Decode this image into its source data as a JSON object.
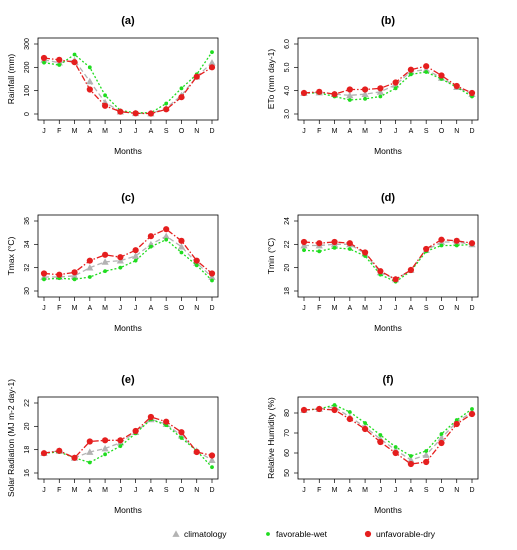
{
  "months": [
    "J",
    "F",
    "M",
    "A",
    "M",
    "J",
    "J",
    "A",
    "S",
    "O",
    "N",
    "D"
  ],
  "colors": {
    "climatology": "#b3b3b3",
    "favorable_wet": "#1fdc1f",
    "unfavorable_dry": "#e51e1e"
  },
  "legend": [
    {
      "key": "climatology",
      "label": "climatology",
      "marker": "triangle"
    },
    {
      "key": "favorable_wet",
      "label": "favorable-wet",
      "marker": "dot"
    },
    {
      "key": "unfavorable_dry",
      "label": "unfavorable-dry",
      "marker": "circle"
    }
  ],
  "chart_data": [
    {
      "type": "line",
      "title": "(a)",
      "xlabel": "Months",
      "ylabel": "Rainfall (mm)",
      "ylim": [
        0,
        300
      ],
      "yticks": [
        0,
        100,
        200,
        300
      ],
      "ytick_labels": [
        "0",
        "100",
        "200",
        "300"
      ],
      "categories": [
        "J",
        "F",
        "M",
        "A",
        "M",
        "J",
        "J",
        "A",
        "S",
        "O",
        "N",
        "D"
      ],
      "series": [
        {
          "name": "climatology",
          "values": [
            232,
            220,
            230,
            140,
            50,
            10,
            3,
            2,
            25,
            80,
            160,
            220
          ]
        },
        {
          "name": "favorable-wet",
          "values": [
            220,
            210,
            255,
            200,
            80,
            15,
            5,
            5,
            45,
            110,
            170,
            265
          ]
        },
        {
          "name": "unfavorable-dry",
          "values": [
            240,
            232,
            222,
            105,
            35,
            10,
            3,
            2,
            20,
            72,
            160,
            200
          ]
        }
      ]
    },
    {
      "type": "line",
      "title": "(b)",
      "xlabel": "Months",
      "ylabel": "ETo (mm day-1)",
      "ylim": [
        3.0,
        6.0
      ],
      "yticks": [
        3.0,
        4.0,
        5.0,
        6.0
      ],
      "ytick_labels": [
        "3.0",
        "4.0",
        "5.0",
        "6.0"
      ],
      "categories": [
        "J",
        "F",
        "M",
        "A",
        "M",
        "J",
        "J",
        "A",
        "S",
        "O",
        "N",
        "D"
      ],
      "series": [
        {
          "name": "climatology",
          "values": [
            3.9,
            3.92,
            3.85,
            3.8,
            3.85,
            3.95,
            4.25,
            4.82,
            4.9,
            4.55,
            4.15,
            3.85
          ]
        },
        {
          "name": "favorable-wet",
          "values": [
            3.9,
            3.9,
            3.75,
            3.6,
            3.65,
            3.75,
            4.1,
            4.7,
            4.8,
            4.5,
            4.15,
            3.75
          ]
        },
        {
          "name": "unfavorable-dry",
          "values": [
            3.9,
            3.95,
            3.85,
            4.05,
            4.05,
            4.1,
            4.35,
            4.9,
            5.05,
            4.65,
            4.2,
            3.9
          ]
        }
      ]
    },
    {
      "type": "line",
      "title": "(c)",
      "xlabel": "Months",
      "ylabel": "Tmax (°C)",
      "ylim": [
        30,
        36
      ],
      "yticks": [
        30,
        32,
        34,
        36
      ],
      "ytick_labels": [
        "30",
        "32",
        "34",
        "36"
      ],
      "categories": [
        "J",
        "F",
        "M",
        "A",
        "M",
        "J",
        "J",
        "A",
        "S",
        "O",
        "N",
        "D"
      ],
      "series": [
        {
          "name": "climatology",
          "values": [
            31.2,
            31.2,
            31.3,
            32.0,
            32.5,
            32.6,
            33.0,
            34.0,
            34.7,
            33.8,
            32.4,
            31.2
          ]
        },
        {
          "name": "favorable-wet",
          "values": [
            31.0,
            31.1,
            31.0,
            31.2,
            31.7,
            32.0,
            32.6,
            33.8,
            34.4,
            33.3,
            32.2,
            30.9
          ]
        },
        {
          "name": "unfavorable-dry",
          "values": [
            31.5,
            31.4,
            31.6,
            32.6,
            33.1,
            32.9,
            33.5,
            34.7,
            35.3,
            34.3,
            32.6,
            31.5
          ]
        }
      ]
    },
    {
      "type": "line",
      "title": "(d)",
      "xlabel": "Months",
      "ylabel": "Tmin (°C)",
      "ylim": [
        18,
        24
      ],
      "yticks": [
        18,
        20,
        22,
        24
      ],
      "ytick_labels": [
        "18",
        "20",
        "22",
        "24"
      ],
      "categories": [
        "J",
        "F",
        "M",
        "A",
        "M",
        "J",
        "J",
        "A",
        "S",
        "O",
        "N",
        "D"
      ],
      "series": [
        {
          "name": "climatology",
          "values": [
            21.9,
            21.9,
            22.0,
            22.0,
            21.2,
            19.6,
            19.0,
            19.8,
            21.5,
            22.2,
            22.2,
            22.0
          ]
        },
        {
          "name": "favorable-wet",
          "values": [
            21.5,
            21.4,
            21.7,
            21.6,
            21.0,
            19.4,
            18.8,
            19.7,
            21.4,
            21.9,
            21.9,
            22.0
          ]
        },
        {
          "name": "unfavorable-dry",
          "values": [
            22.2,
            22.1,
            22.2,
            22.1,
            21.3,
            19.7,
            19.0,
            19.8,
            21.6,
            22.4,
            22.3,
            22.1
          ]
        }
      ]
    },
    {
      "type": "line",
      "title": "(e)",
      "xlabel": "Months",
      "ylabel": "Solar Radiation (MJ m-2 day-1)",
      "ylim": [
        16,
        22
      ],
      "yticks": [
        16,
        18,
        20,
        22
      ],
      "ytick_labels": [
        "16",
        "18",
        "20",
        "22"
      ],
      "categories": [
        "J",
        "F",
        "M",
        "A",
        "M",
        "J",
        "J",
        "A",
        "S",
        "O",
        "N",
        "D"
      ],
      "series": [
        {
          "name": "climatology",
          "values": [
            17.7,
            17.9,
            17.3,
            17.8,
            18.1,
            18.6,
            19.5,
            20.6,
            20.2,
            19.2,
            17.9,
            17.1
          ]
        },
        {
          "name": "favorable-wet",
          "values": [
            17.7,
            17.8,
            17.3,
            16.9,
            17.6,
            18.3,
            19.4,
            20.6,
            20.1,
            19.0,
            17.9,
            16.5
          ]
        },
        {
          "name": "unfavorable-dry",
          "values": [
            17.7,
            17.9,
            17.3,
            18.7,
            18.8,
            18.8,
            19.6,
            20.8,
            20.4,
            19.5,
            17.8,
            17.5
          ]
        }
      ]
    },
    {
      "type": "line",
      "title": "(f)",
      "xlabel": "Months",
      "ylabel": "Relative Humidity (%)",
      "ylim": [
        50,
        85
      ],
      "yticks": [
        50,
        60,
        70,
        80
      ],
      "ytick_labels": [
        "50",
        "60",
        "70",
        "80"
      ],
      "categories": [
        "J",
        "F",
        "M",
        "A",
        "M",
        "J",
        "J",
        "A",
        "S",
        "O",
        "N",
        "D"
      ],
      "series": [
        {
          "name": "climatology",
          "values": [
            81.5,
            82.0,
            83.0,
            78.0,
            73.0,
            67.0,
            61.5,
            56.5,
            59.0,
            67.5,
            75.5,
            80.5
          ]
        },
        {
          "name": "favorable-wet",
          "values": [
            81.5,
            82.0,
            84.0,
            80.5,
            75.0,
            69.0,
            63.0,
            58.5,
            61.0,
            69.5,
            76.5,
            82.0
          ]
        },
        {
          "name": "unfavorable-dry",
          "values": [
            81.5,
            82.0,
            81.5,
            77.0,
            72.0,
            65.5,
            60.0,
            54.5,
            55.5,
            65.0,
            74.5,
            79.5
          ]
        }
      ]
    }
  ]
}
